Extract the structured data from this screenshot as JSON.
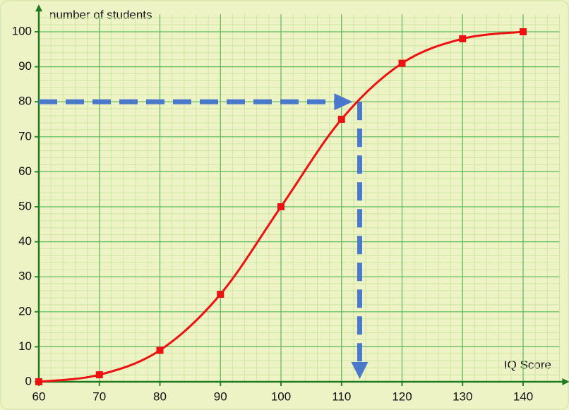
{
  "chart_data": {
    "type": "line",
    "x_label": "IQ Score",
    "y_label": "number of students",
    "x": [
      60,
      70,
      80,
      90,
      100,
      110,
      120,
      130,
      140
    ],
    "series": [
      {
        "color": "#ee1111",
        "values": [
          0,
          2,
          9,
          25,
          50,
          75,
          91,
          98,
          100
        ]
      }
    ],
    "xlim": [
      60,
      146
    ],
    "ylim": [
      0,
      105
    ],
    "xticks": [
      60,
      70,
      80,
      90,
      100,
      110,
      120,
      130,
      140
    ],
    "yticks": [
      0,
      10,
      20,
      30,
      40,
      50,
      60,
      70,
      80,
      90,
      100
    ],
    "grid": true,
    "minor_grid": 2,
    "annotation": {
      "x": 113,
      "y": 80,
      "color": "#4a78cc"
    }
  }
}
